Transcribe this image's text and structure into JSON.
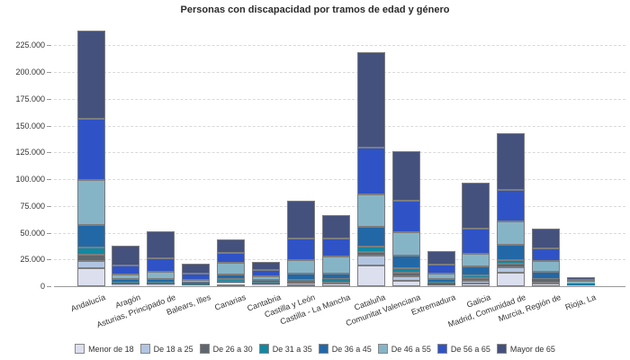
{
  "title": "Personas con discapacidad por tramos de edad y género",
  "chart_data": {
    "type": "bar",
    "subtype": "stacked-vertical",
    "title": "Personas con discapacidad por tramos de edad y género",
    "xlabel": "",
    "ylabel": "",
    "ylim": [
      0,
      240000
    ],
    "grid": "dashed-horizontal",
    "legend_position": "bottom",
    "ytick_values": [
      0,
      25000,
      50000,
      75000,
      100000,
      125000,
      150000,
      175000,
      200000,
      225000
    ],
    "ytick_labels": [
      "0",
      "25.000",
      "50.000",
      "75.000",
      "100.000",
      "125.000",
      "150.000",
      "175.000",
      "200.000",
      "225.000"
    ],
    "categories": [
      "Andalucía",
      "Aragón",
      "Asturias, Principado de",
      "Balears, Illes",
      "Canarias",
      "Cantabria",
      "Castilla y León",
      "Castilla - La Mancha",
      "Cataluña",
      "Comunitat Valenciana",
      "Extremadura",
      "Galicia",
      "Madrid, Comunidad de",
      "Murcia, Región de",
      "Rioja, La"
    ],
    "series": [
      {
        "name": "Menor de 18",
        "color": "#dcdfee",
        "values": [
          16600,
          1000,
          900,
          800,
          2100,
          1200,
          1500,
          2900,
          19300,
          5000,
          700,
          2900,
          12600,
          2500,
          700
        ]
      },
      {
        "name": "De 18 a 25",
        "color": "#b1c5e1",
        "values": [
          7000,
          800,
          800,
          600,
          1300,
          800,
          1000,
          1700,
          9200,
          4200,
          500,
          2500,
          5000,
          1700,
          500
        ]
      },
      {
        "name": "De 26 a 30",
        "color": "#5f666d",
        "values": [
          6100,
          800,
          700,
          400,
          800,
          500,
          800,
          800,
          3400,
          3400,
          1200,
          2500,
          3400,
          1300,
          400
        ]
      },
      {
        "name": "De 31 a 35",
        "color": "#1188a2",
        "values": [
          6500,
          800,
          700,
          400,
          2500,
          500,
          2200,
          1300,
          5000,
          4200,
          900,
          2100,
          3400,
          1100,
          400
        ]
      },
      {
        "name": "De 36 a 45",
        "color": "#2268a6",
        "values": [
          21000,
          3600,
          3400,
          1300,
          4400,
          2500,
          6200,
          4800,
          18500,
          11700,
          3400,
          8400,
          14000,
          6700,
          900
        ]
      },
      {
        "name": "De 46 a 55",
        "color": "#86b4c7",
        "values": [
          42000,
          3900,
          7300,
          2500,
          11000,
          3600,
          12600,
          16000,
          30200,
          21800,
          5200,
          11800,
          21900,
          10100,
          1000
        ]
      },
      {
        "name": "De 56 a 65",
        "color": "#2f53c6",
        "values": [
          57200,
          8400,
          12000,
          5900,
          8600,
          5900,
          20400,
          17100,
          43600,
          29400,
          8400,
          23500,
          29400,
          11800,
          1700
        ]
      },
      {
        "name": "Mayor de 65",
        "color": "#44517d",
        "values": [
          82400,
          18500,
          25200,
          9200,
          13400,
          7600,
          35300,
          21900,
          89800,
          46100,
          12600,
          43000,
          53000,
          18800,
          2500
        ]
      }
    ]
  },
  "colors": {
    "background": "#ffffff",
    "grid": "#d9d9d9",
    "axis_line": "#9a9a9a",
    "bar_border": "#7d7d7d",
    "text": "#333333"
  }
}
